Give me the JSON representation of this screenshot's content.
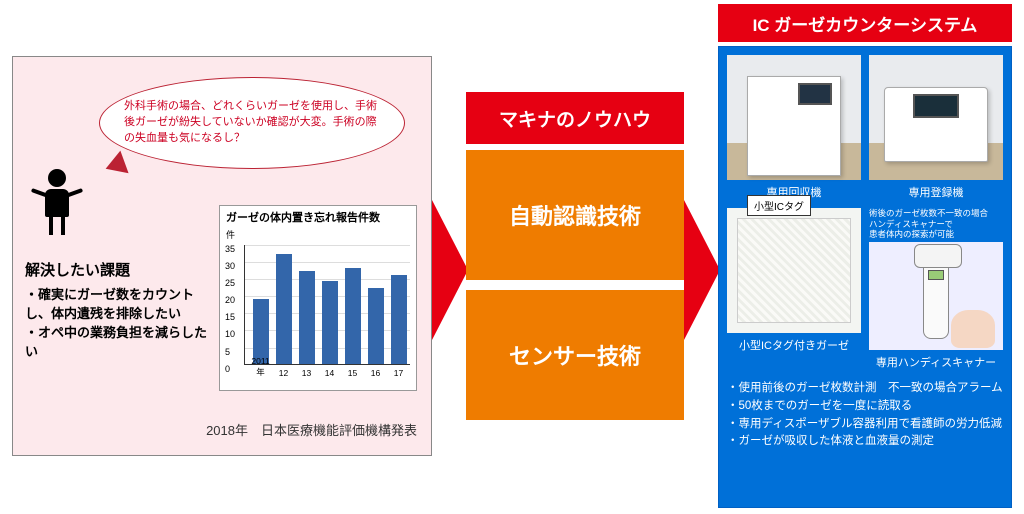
{
  "left": {
    "speech": "外科手術の場合、どれくらいガーゼを使用し、手術後ガーゼが紛失していないか確認が大変。手術の際の失血量も気になるし？",
    "issue_title": "解決したい課題",
    "issues": [
      "・確実にガーゼ数をカウントし、体内遺残を排除したい",
      "・オペ中の業務負担を減らしたい"
    ],
    "chart": {
      "title": "ガーゼの体内置き忘れ報告件数",
      "unit": "件",
      "ylim_max": 35,
      "ytick_step": 5,
      "categories": [
        "2011年",
        "12",
        "13",
        "14",
        "15",
        "16",
        "17"
      ],
      "values": [
        19,
        32,
        27,
        24,
        28,
        22,
        26
      ],
      "bar_color": "#3366aa",
      "grid_color": "#dddddd"
    },
    "source": "2018年　日本医療機能評価機構発表"
  },
  "middle": {
    "header": "マキナのノウハウ",
    "box_a": "自動認識技術",
    "box_b": "センサー技術",
    "header_bg": "#e60012",
    "box_bg": "#ef7c00"
  },
  "right": {
    "title": "IC ガーゼカウンターシステム",
    "dev1_caption": "専用回収機",
    "dev2_caption": "専用登録機",
    "tag_label": "小型ICタグ",
    "gauze_caption": "小型ICタグ付きガーゼ",
    "scanner_note": "術後のガーゼ枚数不一致の場合\nハンディスキャナーで\n患者体内の探索が可能",
    "scanner_caption": "専用ハンディスキャナー",
    "bullets": [
      "・使用前後のガーゼ枚数計測　不一致の場合アラーム",
      "・50枚までのガーゼを一度に読取る",
      "・専用ディスポーザブル容器利用で看護師の労力低減",
      "・ガーゼが吸収した体液と血液量の測定"
    ],
    "panel_bg": "#0070d8"
  }
}
